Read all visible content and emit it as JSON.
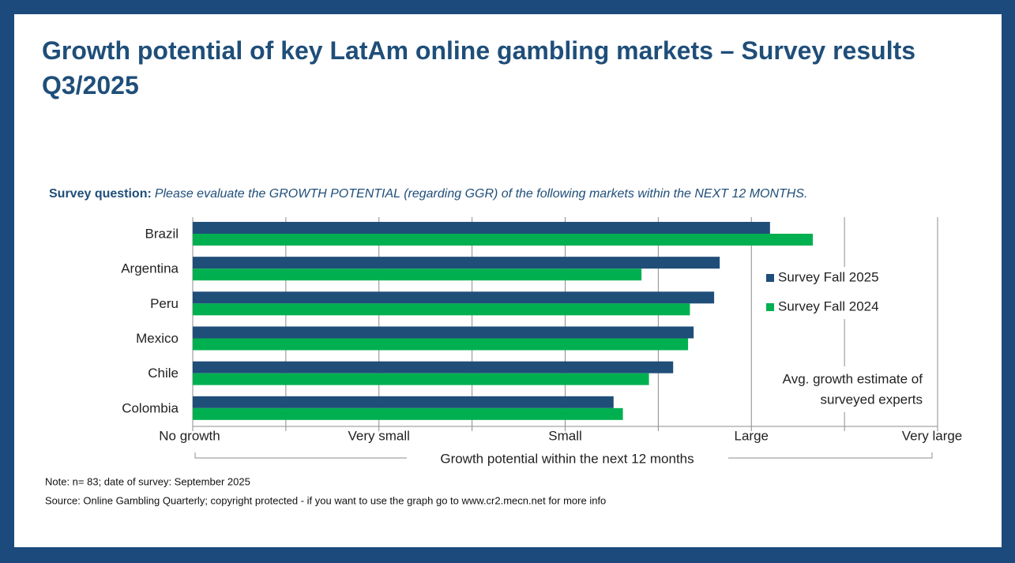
{
  "chart_data": {
    "type": "hbar",
    "title": "Growth potential of key LatAm online gambling markets – Survey results Q3/2025",
    "question_label": "Survey question:",
    "question": "Please evaluate the GROWTH POTENTIAL (regarding GGR) of the following markets within the NEXT 12 MONTHS.",
    "categories": [
      "Brazil",
      "Argentina",
      "Peru",
      "Mexico",
      "Chile",
      "Colombia"
    ],
    "series": [
      {
        "name": "Survey Fall 2025",
        "color": "#1f4e79",
        "values": [
          3.1,
          2.83,
          2.8,
          2.69,
          2.58,
          2.26
        ]
      },
      {
        "name": "Survey Fall 2024",
        "color": "#00b050",
        "values": [
          3.33,
          2.41,
          2.67,
          2.66,
          2.45,
          2.31
        ]
      }
    ],
    "xlim": [
      0,
      4
    ],
    "xticks": [
      {
        "value": 0,
        "label": "No growth"
      },
      {
        "value": 1,
        "label": "Very small"
      },
      {
        "value": 2,
        "label": "Small"
      },
      {
        "value": 3,
        "label": "Large"
      },
      {
        "value": 4,
        "label": "Very large"
      }
    ],
    "minor_xticks": [
      0.5,
      1.5,
      2.5,
      3.5
    ],
    "grid": true,
    "x_label": "Growth potential within the next 12 months",
    "annotation": [
      "Avg. growth estimate of",
      "surveyed experts"
    ],
    "notes": [
      "Note: n= 83; date of survey: September 2025",
      "Source: Online Gambling Quarterly; copyright protected - if you want to use the graph go to www.cr2.mecn.net for more info"
    ]
  }
}
